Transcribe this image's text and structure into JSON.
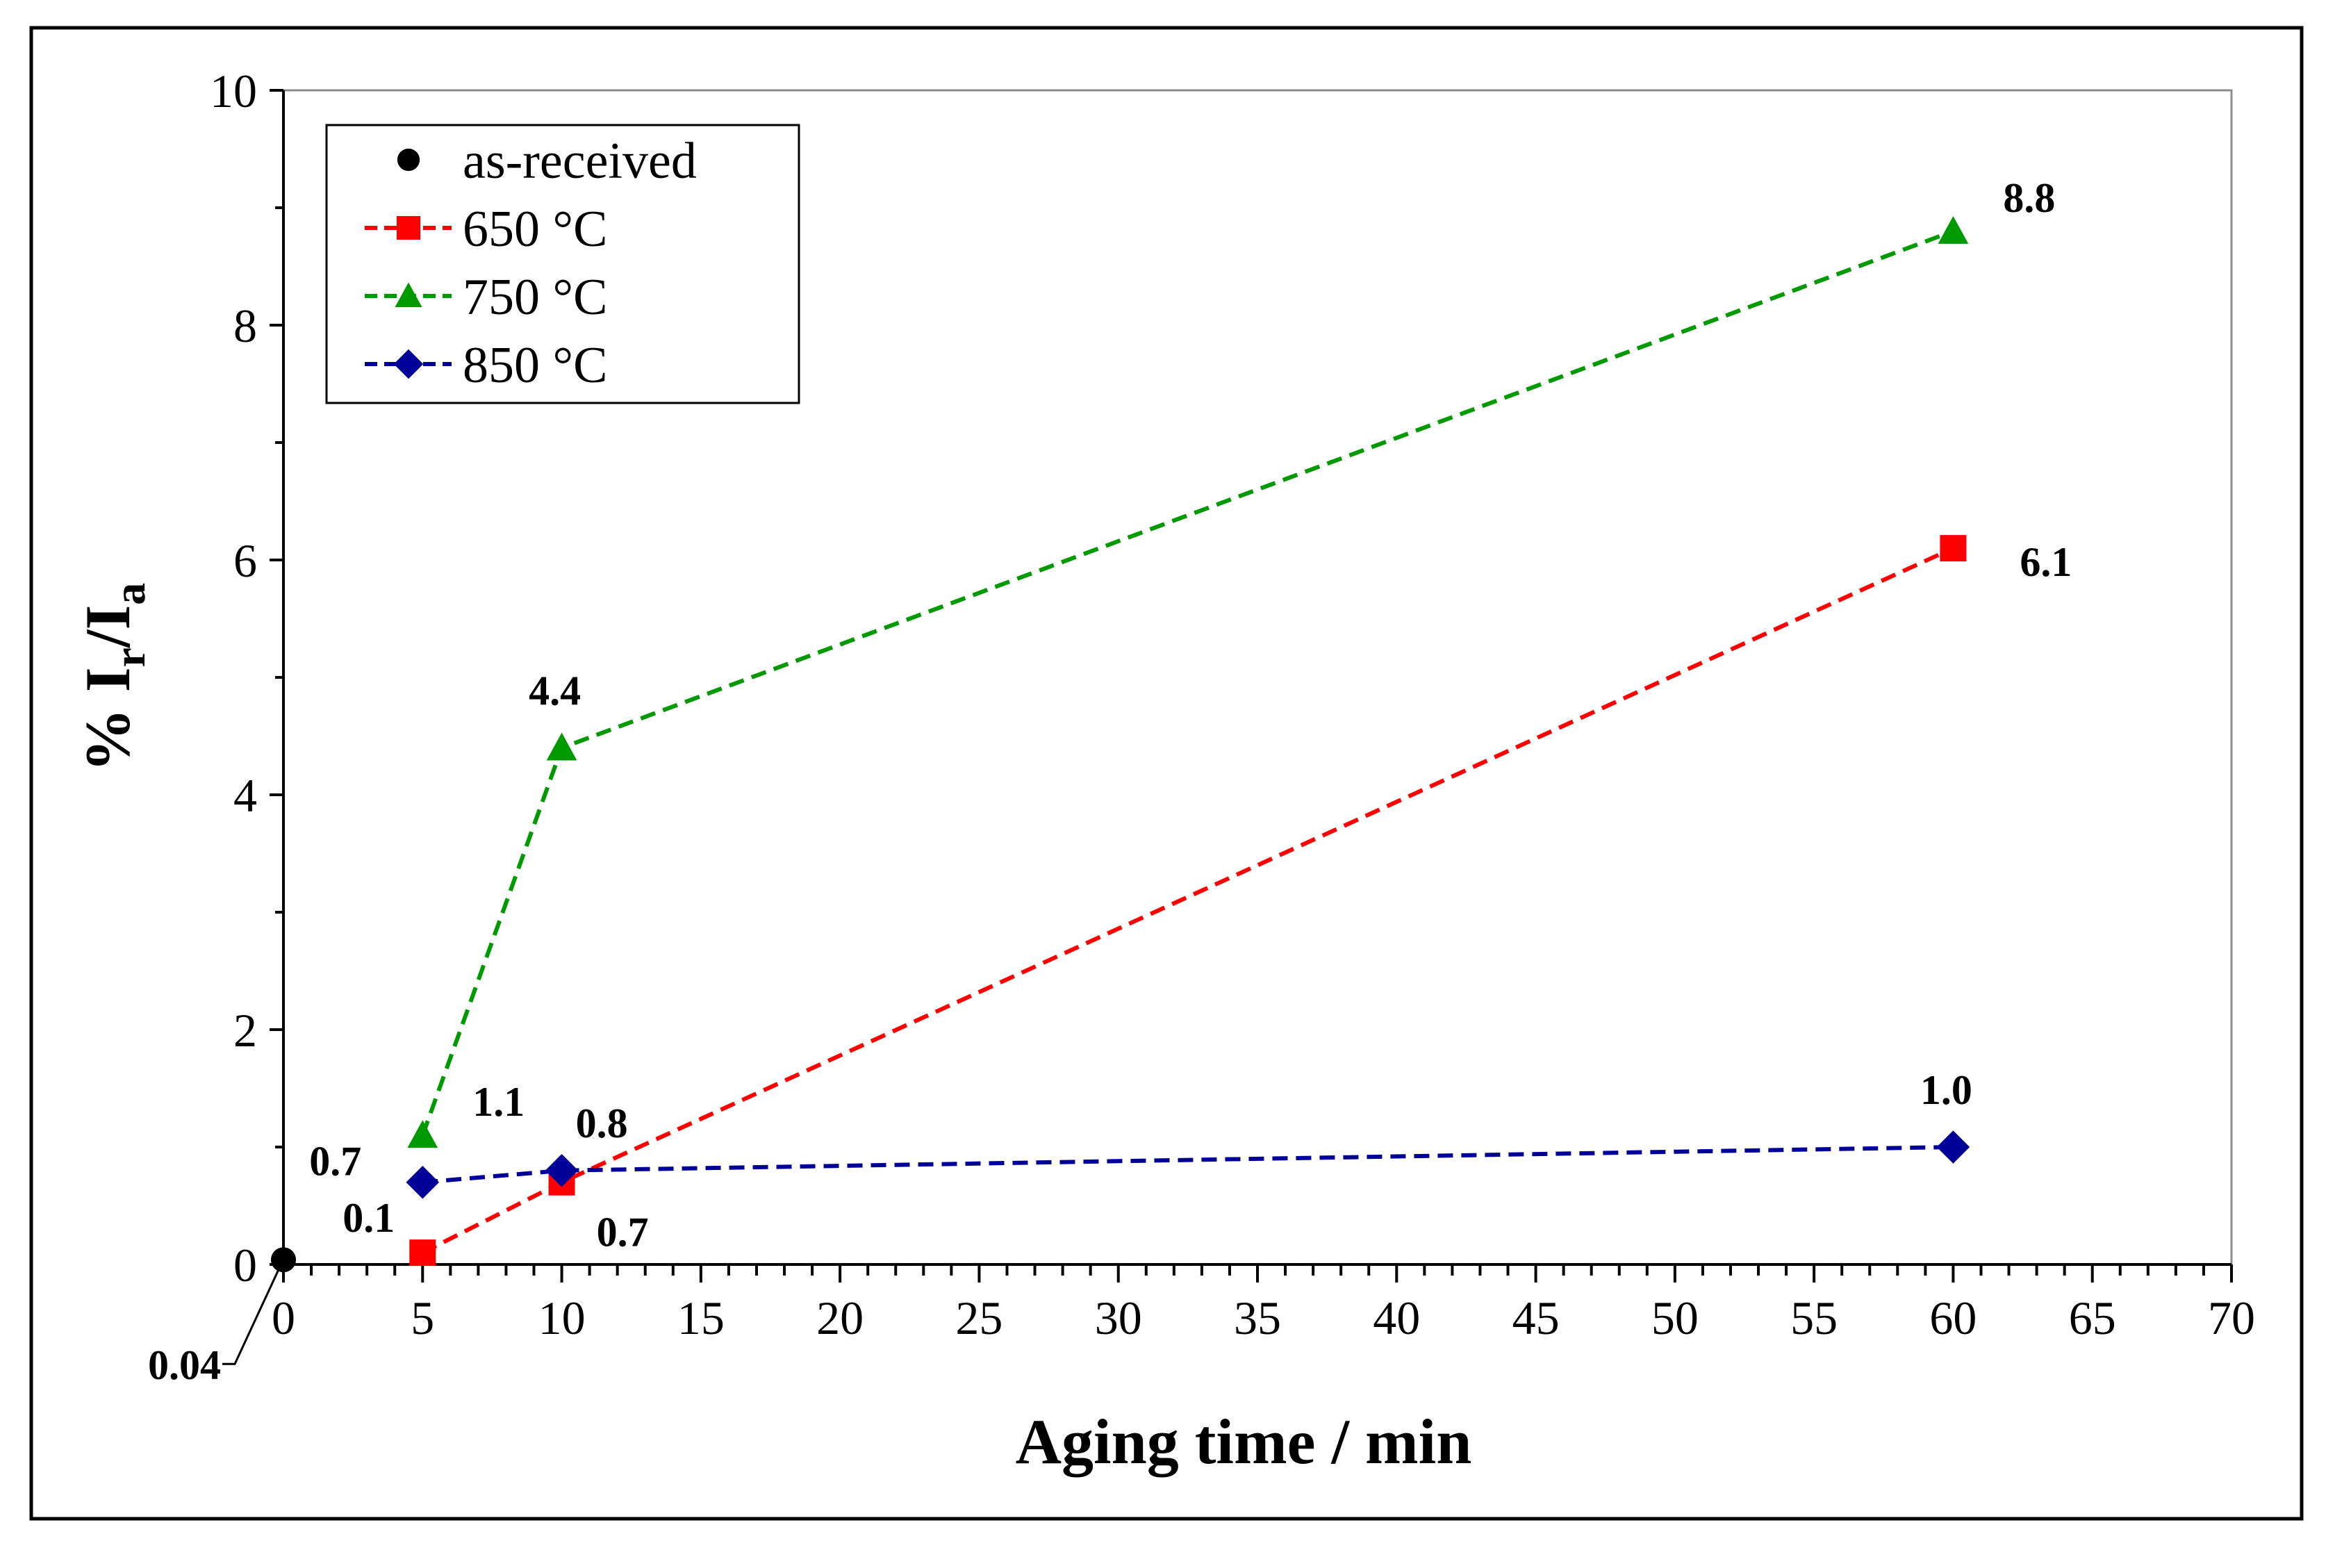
{
  "chart_data": {
    "type": "line",
    "title": "",
    "xlabel": "Aging time / min",
    "ylabel": {
      "prefix": "% I",
      "sub1": "r",
      "mid": "/I",
      "sub2": "a"
    },
    "xlim": [
      0,
      70
    ],
    "ylim": [
      0,
      10
    ],
    "xticks": [
      0,
      5,
      10,
      15,
      20,
      25,
      30,
      35,
      40,
      45,
      50,
      55,
      60,
      65,
      70
    ],
    "yticks": [
      0,
      2,
      4,
      6,
      8,
      10
    ],
    "x_minor_step": 1,
    "y_minor_step": 1,
    "grid": false,
    "legend_position": "top-left",
    "series": [
      {
        "name": "as-received",
        "color": "#000000",
        "marker": "circle",
        "line": "none",
        "x": [
          0
        ],
        "y": [
          0.04
        ]
      },
      {
        "name": "650 °C",
        "color": "#ff0000",
        "marker": "square",
        "line": "dashed",
        "x": [
          5,
          10,
          60
        ],
        "y": [
          0.1,
          0.7,
          6.1
        ]
      },
      {
        "name": "750 °C",
        "color": "#009900",
        "marker": "triangle",
        "line": "dashed",
        "x": [
          5,
          10,
          60
        ],
        "y": [
          1.1,
          4.4,
          8.8
        ]
      },
      {
        "name": "850 °C",
        "color": "#000099",
        "marker": "diamond",
        "line": "dashed",
        "x": [
          5,
          10,
          60
        ],
        "y": [
          0.7,
          0.8,
          1.0
        ]
      }
    ],
    "annotations": [
      {
        "text": "0.04",
        "series": "as-received",
        "index": 0,
        "pos": "leader-bottom-left"
      },
      {
        "text": "0.1",
        "series": "650 °C",
        "index": 0,
        "pos": "upper-left"
      },
      {
        "text": "0.7",
        "series": "650 °C",
        "index": 1,
        "pos": "lower-right"
      },
      {
        "text": "6.1",
        "series": "650 °C",
        "index": 2,
        "pos": "right"
      },
      {
        "text": "1.1",
        "series": "750 °C",
        "index": 0,
        "pos": "upper-right"
      },
      {
        "text": "4.4",
        "series": "750 °C",
        "index": 1,
        "pos": "above"
      },
      {
        "text": "8.8",
        "series": "750 °C",
        "index": 2,
        "pos": "upper-right"
      },
      {
        "text": "0.7",
        "series": "850 °C",
        "index": 0,
        "pos": "left"
      },
      {
        "text": "0.8",
        "series": "850 °C",
        "index": 1,
        "pos": "upper-right"
      },
      {
        "text": "1.0",
        "series": "850 °C",
        "index": 2,
        "pos": "above"
      }
    ]
  }
}
